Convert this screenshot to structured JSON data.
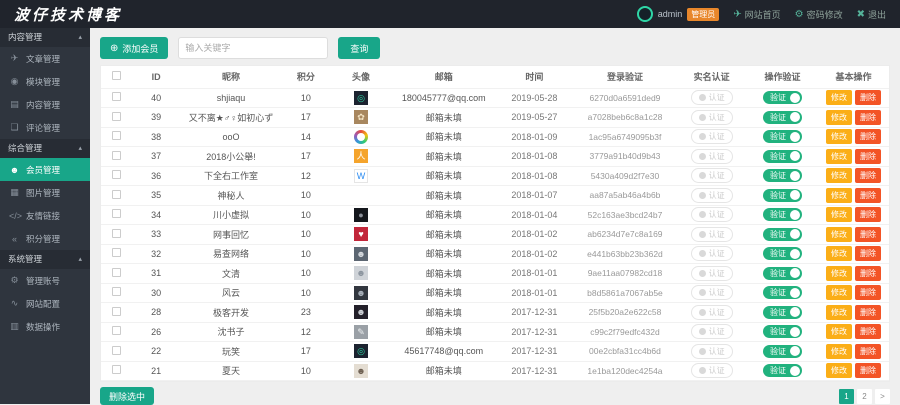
{
  "colors": {
    "accent": "#18a689",
    "orange": "#fbae17",
    "red": "#f35426",
    "badge_orange": "#e8872b",
    "header_bg": "#20242c",
    "sidebar_bg": "#2f353e"
  },
  "header": {
    "logo": "波仔技术博客",
    "username": "admin",
    "role_badge": "管理员",
    "links": [
      {
        "label": "网站首页",
        "icon": "✈"
      },
      {
        "label": "密码修改",
        "icon": "⚙"
      },
      {
        "label": "退出",
        "icon": "✖"
      }
    ]
  },
  "sidebar": {
    "sections": [
      {
        "title": "内容管理",
        "caret": "▴",
        "items": [
          {
            "label": "文章管理",
            "icon": "✈",
            "name": "article-management"
          },
          {
            "label": "模块管理",
            "icon": "◉",
            "name": "module-management"
          },
          {
            "label": "内容管理",
            "icon": "▤",
            "name": "content-management"
          },
          {
            "label": "评论管理",
            "icon": "❑",
            "name": "comment-management"
          }
        ]
      },
      {
        "title": "综合管理",
        "caret": "▴",
        "items": [
          {
            "label": "会员管理",
            "icon": "☻",
            "name": "member-management",
            "active": true
          },
          {
            "label": "图片管理",
            "icon": "▦",
            "name": "image-management"
          },
          {
            "label": "友情链接",
            "icon": "</>",
            "name": "friend-links"
          },
          {
            "label": "积分管理",
            "icon": "«",
            "name": "points-management"
          }
        ]
      },
      {
        "title": "系统管理",
        "caret": "▴",
        "items": [
          {
            "label": "管理账号",
            "icon": "⚙",
            "name": "admin-account"
          },
          {
            "label": "网站配置",
            "icon": "∿",
            "name": "site-config"
          },
          {
            "label": "数据操作",
            "icon": "▥",
            "name": "data-operations"
          }
        ]
      }
    ]
  },
  "toolbar": {
    "add_button": "添加会员",
    "add_icon": "⊕",
    "search_placeholder": "输入关键字",
    "search_button": "查询"
  },
  "table": {
    "headers": [
      "ID",
      "昵称",
      "积分",
      "头像",
      "邮箱",
      "时间",
      "登录验证",
      "实名认证",
      "操作验证",
      "基本操作"
    ],
    "labels": {
      "realname": "认证",
      "verify": "验证",
      "edit": "修改",
      "delete": "删除"
    },
    "rows": [
      {
        "id": "40",
        "nickname": "shjiaqu",
        "points": "10",
        "avatar": {
          "bg": "#1c2330",
          "fg": "#2fd6a6",
          "glyph": "◎"
        },
        "email": "180045777@qq.com",
        "time": "2019-05-28",
        "token": "6270d0a6591ded9"
      },
      {
        "id": "39",
        "nickname": "又不离★♂♀如初心ず",
        "points": "17",
        "avatar": {
          "bg": "#a8875f",
          "fg": "#f3e3c3",
          "glyph": "✿"
        },
        "email": "邮箱未填",
        "time": "2019-05-27",
        "token": "a7028beb6c8a1c28"
      },
      {
        "id": "38",
        "nickname": "ooO",
        "points": "14",
        "avatar": {
          "rainbow": true
        },
        "email": "邮箱未填",
        "time": "2018-01-09",
        "token": "1ac95a6749095b3f"
      },
      {
        "id": "37",
        "nickname": "2018小公舉!",
        "points": "17",
        "avatar": {
          "bg": "#f5a42c",
          "fg": "#ffffff",
          "glyph": "人"
        },
        "email": "邮箱未填",
        "time": "2018-01-08",
        "token": "3779a91b40d9b43"
      },
      {
        "id": "36",
        "nickname": "下全右工作室",
        "points": "12",
        "avatar": {
          "bg": "#ffffff",
          "fg": "#2d8cf0",
          "glyph": "W",
          "border": "#e5e5e5"
        },
        "email": "邮箱未填",
        "time": "2018-01-08",
        "token": "5430a409d2f7e30"
      },
      {
        "id": "35",
        "nickname": "神秘人",
        "points": "10",
        "avatar": null,
        "email": "邮箱未填",
        "time": "2018-01-07",
        "token": "aa87a5ab46a4b6b"
      },
      {
        "id": "34",
        "nickname": "川小虚拟",
        "points": "10",
        "avatar": {
          "bg": "#14171c",
          "fg": "#8a8f98",
          "glyph": "●"
        },
        "email": "邮箱未填",
        "time": "2018-01-04",
        "token": "52c163ae3bcd24b7"
      },
      {
        "id": "33",
        "nickname": "网事回忆",
        "points": "10",
        "avatar": {
          "bg": "#c2263a",
          "fg": "#ffffff",
          "glyph": "♥"
        },
        "email": "邮箱未填",
        "time": "2018-01-02",
        "token": "ab6234d7e7c8a169"
      },
      {
        "id": "32",
        "nickname": "易查网络",
        "points": "10",
        "avatar": {
          "bg": "#5c6672",
          "fg": "#d7dbe0",
          "glyph": "☻"
        },
        "email": "邮箱未填",
        "time": "2018-01-02",
        "token": "e441b63bb23b362d"
      },
      {
        "id": "31",
        "nickname": "文清",
        "points": "10",
        "avatar": {
          "bg": "#cfd3d8",
          "fg": "#8b949e",
          "glyph": "☻"
        },
        "email": "邮箱未填",
        "time": "2018-01-01",
        "token": "9ae11aa07982cd18"
      },
      {
        "id": "30",
        "nickname": "风云",
        "points": "10",
        "avatar": {
          "bg": "#32373f",
          "fg": "#aab2bc",
          "glyph": "☻"
        },
        "email": "邮箱未填",
        "time": "2018-01-01",
        "token": "b8d5861a7067ab5e"
      },
      {
        "id": "28",
        "nickname": "极客开发",
        "points": "23",
        "avatar": {
          "bg": "#23202a",
          "fg": "#cfd3d8",
          "glyph": "☻"
        },
        "email": "邮箱未填",
        "time": "2017-12-31",
        "token": "25f5b20a2e622c58"
      },
      {
        "id": "26",
        "nickname": "沈书子",
        "points": "12",
        "avatar": {
          "bg": "#9aa0a6",
          "fg": "#eceff1",
          "glyph": "✎"
        },
        "email": "邮箱未填",
        "time": "2017-12-31",
        "token": "c99c2f79edfc432d"
      },
      {
        "id": "22",
        "nickname": "玩笑",
        "points": "17",
        "avatar": {
          "bg": "#1c2330",
          "fg": "#2fd6a6",
          "glyph": "◎"
        },
        "email": "45617748@qq.com",
        "time": "2017-12-31",
        "token": "00e2cbfa31cc4b6d"
      },
      {
        "id": "21",
        "nickname": "夏天",
        "points": "10",
        "avatar": {
          "bg": "#e4ddd2",
          "fg": "#6b5d4f",
          "glyph": "☻"
        },
        "email": "邮箱未填",
        "time": "2017-12-31",
        "token": "1e1ba120dec4254a"
      }
    ]
  },
  "footer": {
    "delete_selected": "删除选中",
    "pagination": [
      "1",
      "2",
      ">"
    ]
  }
}
